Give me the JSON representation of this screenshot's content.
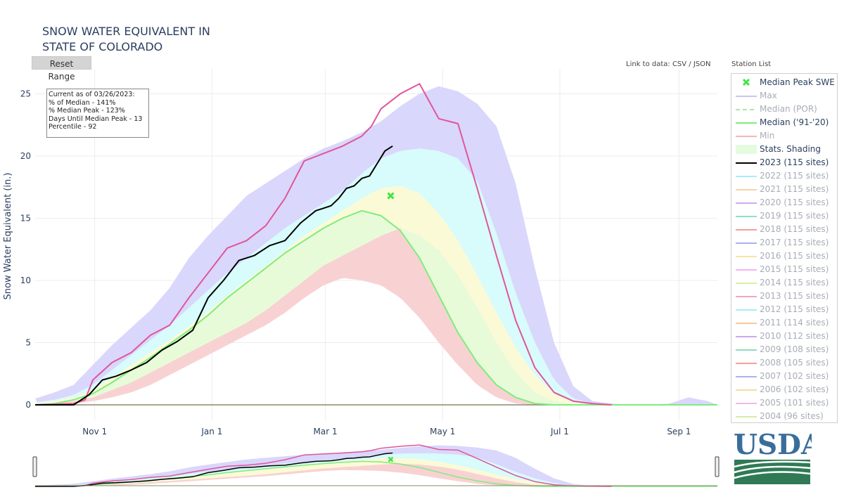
{
  "header": {
    "title_line1": "SNOW WATER EQUIVALENT IN",
    "title_line2": "STATE OF COLORADO",
    "reset_label": "Reset Range",
    "link_text": "Link to data: CSV / JSON",
    "station_list_label": "Station List"
  },
  "info_box": {
    "line1": "Current as of 03/26/2023:",
    "line2": "% of Median - 141%",
    "line3": "% Median Peak - 123%",
    "line4": "Days Until Median Peak - 13",
    "line5": "Percentile - 92"
  },
  "colors": {
    "max": "#ccccf6",
    "max_band": "#d9d7fb",
    "upper_band": "#d8fbfb",
    "mid_band": "#e8fbd9",
    "lower_band": "#fbfad7",
    "min_band": "#f8d2d2",
    "median": "#7ded7d",
    "wy2023": "#000000",
    "wy_max_line": "#e0559a",
    "peak_marker": "#41e541"
  },
  "legend": {
    "items": [
      {
        "label": "Median Peak SWE",
        "type": "marker",
        "color": "#41e541",
        "active": true
      },
      {
        "label": "Max",
        "type": "line",
        "color": "#c8c4f2",
        "active": false
      },
      {
        "label": "Median (POR)",
        "type": "dash",
        "color": "#a6e9a6",
        "active": false
      },
      {
        "label": "Median ('91-'20)",
        "type": "line",
        "color": "#7ded7d",
        "active": true
      },
      {
        "label": "Min",
        "type": "line",
        "color": "#f2b8b8",
        "active": false
      },
      {
        "label": "Stats. Shading",
        "type": "fill",
        "color": "#e4fbe0",
        "active": true
      },
      {
        "label": "2023 (115 sites)",
        "type": "line",
        "color": "#000000",
        "active": true
      },
      {
        "label": "2022 (115 sites)",
        "type": "line",
        "color": "#a8eef8",
        "active": false
      },
      {
        "label": "2021 (115 sites)",
        "type": "line",
        "color": "#f9d2a8",
        "active": false
      },
      {
        "label": "2020 (115 sites)",
        "type": "line",
        "color": "#d2a8ee",
        "active": false
      },
      {
        "label": "2019 (115 sites)",
        "type": "line",
        "color": "#8ee0c8",
        "active": false
      },
      {
        "label": "2018 (115 sites)",
        "type": "line",
        "color": "#f2a0a0",
        "active": false
      },
      {
        "label": "2017 (115 sites)",
        "type": "line",
        "color": "#a8b0f0",
        "active": false
      },
      {
        "label": "2016 (115 sites)",
        "type": "line",
        "color": "#f8e2a6",
        "active": false
      },
      {
        "label": "2015 (115 sites)",
        "type": "line",
        "color": "#f4b4f0",
        "active": false
      },
      {
        "label": "2014 (115 sites)",
        "type": "line",
        "color": "#d6f0a6",
        "active": false
      },
      {
        "label": "2013 (115 sites)",
        "type": "line",
        "color": "#f4a6c4",
        "active": false
      },
      {
        "label": "2012 (115 sites)",
        "type": "line",
        "color": "#a6ecf4",
        "active": false
      },
      {
        "label": "2011 (114 sites)",
        "type": "line",
        "color": "#f8c8a0",
        "active": false
      },
      {
        "label": "2010 (112 sites)",
        "type": "line",
        "color": "#d0a6ec",
        "active": false
      },
      {
        "label": "2009 (108 sites)",
        "type": "line",
        "color": "#8edcc0",
        "active": false
      },
      {
        "label": "2008 (105 sites)",
        "type": "line",
        "color": "#f4a0a0",
        "active": false
      },
      {
        "label": "2007 (102 sites)",
        "type": "line",
        "color": "#a8b4f0",
        "active": false
      },
      {
        "label": "2006 (102 sites)",
        "type": "line",
        "color": "#f8dca6",
        "active": false
      },
      {
        "label": "2005 (101 sites)",
        "type": "line",
        "color": "#f0b8ec",
        "active": false
      },
      {
        "label": "2004 (96 sites)",
        "type": "line",
        "color": "#d4eca6",
        "active": false
      }
    ]
  },
  "logo": {
    "text": "USDA"
  },
  "chart_data": {
    "type": "area",
    "ylabel": "Snow Water Equivalent (in.)",
    "xlabel": "",
    "ylim": [
      0,
      27
    ],
    "yticks": [
      0,
      5,
      10,
      15,
      20,
      25
    ],
    "xlim_days": [
      0,
      355
    ],
    "xticks": [
      {
        "label": "Nov 1",
        "day": 31
      },
      {
        "label": "Jan 1",
        "day": 92
      },
      {
        "label": "Mar 1",
        "day": 151
      },
      {
        "label": "May 1",
        "day": 212
      },
      {
        "label": "Jul 1",
        "day": 273
      },
      {
        "label": "Sep 1",
        "day": 335
      }
    ],
    "grid": true,
    "day_offset_note": "",
    "max": {
      "x": [
        0,
        10,
        20,
        30,
        40,
        50,
        60,
        70,
        80,
        90,
        100,
        110,
        120,
        130,
        140,
        150,
        160,
        170,
        180,
        190,
        200,
        210,
        220,
        230,
        240,
        250,
        260,
        270,
        280,
        290,
        300,
        310,
        320,
        330,
        340,
        350,
        355
      ],
      "y": [
        0.5,
        1.0,
        1.6,
        3.2,
        4.8,
        6.2,
        7.6,
        9.4,
        11.8,
        13.6,
        15.2,
        16.8,
        17.8,
        18.8,
        19.8,
        20.6,
        21.2,
        21.9,
        22.8,
        24.0,
        25.0,
        25.6,
        25.2,
        24.2,
        22.4,
        17.8,
        11.0,
        5.0,
        1.5,
        0.3,
        0.1,
        0.0,
        0.0,
        0.1,
        0.6,
        0.3,
        0.0
      ]
    },
    "p90": {
      "x": [
        0,
        10,
        20,
        30,
        40,
        50,
        60,
        70,
        80,
        90,
        100,
        110,
        120,
        130,
        140,
        150,
        160,
        170,
        180,
        190,
        200,
        210,
        220,
        230,
        240,
        250,
        260,
        270,
        280,
        290,
        300,
        355
      ],
      "y": [
        0.2,
        0.4,
        0.8,
        1.6,
        2.8,
        4.0,
        5.2,
        6.4,
        7.8,
        9.2,
        10.6,
        11.8,
        13.0,
        14.2,
        15.2,
        16.2,
        17.2,
        18.6,
        19.8,
        20.4,
        20.6,
        20.4,
        19.8,
        18.0,
        13.8,
        9.0,
        5.0,
        2.0,
        0.5,
        0.1,
        0.0,
        0.0
      ]
    },
    "p70": {
      "x": [
        0,
        10,
        20,
        30,
        40,
        50,
        60,
        70,
        80,
        90,
        100,
        110,
        120,
        130,
        140,
        150,
        160,
        170,
        180,
        190,
        200,
        210,
        220,
        230,
        240,
        250,
        260,
        270,
        280,
        290,
        300,
        355
      ],
      "y": [
        0.1,
        0.3,
        0.6,
        1.2,
        2.2,
        3.2,
        4.2,
        5.2,
        6.3,
        7.5,
        8.8,
        10.0,
        11.2,
        12.4,
        13.6,
        14.6,
        15.6,
        16.6,
        17.4,
        17.6,
        17.0,
        15.4,
        13.2,
        10.4,
        7.4,
        4.6,
        2.4,
        0.9,
        0.2,
        0.0,
        0.0,
        0.0
      ]
    },
    "p30": {
      "x": [
        0,
        10,
        20,
        30,
        40,
        50,
        60,
        70,
        80,
        90,
        100,
        110,
        120,
        130,
        140,
        150,
        160,
        170,
        180,
        190,
        200,
        210,
        220,
        230,
        240,
        250,
        260,
        270,
        280,
        290,
        300,
        355
      ],
      "y": [
        0.0,
        0.1,
        0.3,
        0.6,
        1.2,
        1.8,
        2.6,
        3.4,
        4.2,
        5.0,
        5.8,
        6.6,
        7.6,
        8.8,
        10.0,
        11.2,
        12.0,
        12.8,
        13.6,
        14.2,
        13.6,
        12.4,
        10.4,
        7.8,
        5.0,
        2.6,
        1.0,
        0.3,
        0.0,
        0.0,
        0.0,
        0.0
      ]
    },
    "min": {
      "x": [
        0,
        10,
        20,
        30,
        40,
        50,
        60,
        70,
        80,
        90,
        100,
        110,
        120,
        130,
        140,
        150,
        160,
        170,
        180,
        190,
        200,
        210,
        220,
        230,
        240,
        250,
        260,
        270,
        280,
        290,
        300,
        355
      ],
      "y": [
        0.0,
        0.0,
        0.1,
        0.3,
        0.6,
        1.0,
        1.6,
        2.4,
        3.2,
        4.0,
        4.8,
        5.6,
        6.4,
        7.4,
        8.6,
        9.6,
        10.2,
        10.0,
        9.6,
        8.6,
        7.0,
        5.0,
        3.2,
        1.6,
        0.6,
        0.1,
        0.0,
        0.0,
        0.0,
        0.0,
        0.0,
        0.0
      ]
    },
    "median": {
      "x": [
        0,
        10,
        20,
        30,
        40,
        50,
        60,
        70,
        80,
        90,
        100,
        110,
        120,
        130,
        140,
        150,
        160,
        170,
        180,
        190,
        200,
        210,
        220,
        230,
        240,
        250,
        260,
        270,
        280,
        290,
        300,
        355
      ],
      "y": [
        0.0,
        0.1,
        0.4,
        0.9,
        1.8,
        2.8,
        3.8,
        4.9,
        6.0,
        7.2,
        8.6,
        9.8,
        11.0,
        12.2,
        13.2,
        14.2,
        15.0,
        15.6,
        15.2,
        14.0,
        11.8,
        8.8,
        5.8,
        3.4,
        1.6,
        0.6,
        0.1,
        0.0,
        0.0,
        0.0,
        0.0,
        0.0
      ]
    },
    "wy_max_line": {
      "x": [
        0,
        20,
        26,
        30,
        40,
        50,
        60,
        70,
        80,
        90,
        100,
        110,
        120,
        130,
        140,
        150,
        160,
        170,
        175,
        180,
        190,
        200,
        210,
        220,
        230,
        240,
        250,
        260,
        270,
        280,
        290,
        300
      ],
      "y": [
        0.0,
        0.1,
        0.4,
        2.0,
        3.4,
        4.2,
        5.6,
        6.4,
        8.6,
        10.6,
        12.6,
        13.2,
        14.4,
        16.6,
        19.6,
        20.2,
        20.8,
        21.6,
        22.4,
        23.8,
        25.0,
        25.8,
        23.0,
        22.6,
        17.4,
        12.0,
        6.8,
        3.0,
        1.0,
        0.3,
        0.1,
        0.0
      ]
    },
    "wy2023": {
      "x": [
        0,
        20,
        28,
        35,
        42,
        50,
        58,
        66,
        74,
        82,
        90,
        98,
        106,
        114,
        122,
        130,
        138,
        146,
        150,
        154,
        158,
        162,
        166,
        170,
        174,
        178,
        182,
        186
      ],
      "y": [
        0.0,
        0.0,
        0.8,
        2.0,
        2.3,
        2.8,
        3.4,
        4.4,
        5.1,
        6.0,
        8.6,
        10.0,
        11.6,
        12.0,
        12.8,
        13.2,
        14.6,
        15.6,
        15.8,
        16.0,
        16.6,
        17.4,
        17.6,
        18.2,
        18.4,
        19.4,
        20.4,
        20.8
      ]
    },
    "median_peak": {
      "day": 185,
      "value": 16.8
    }
  }
}
